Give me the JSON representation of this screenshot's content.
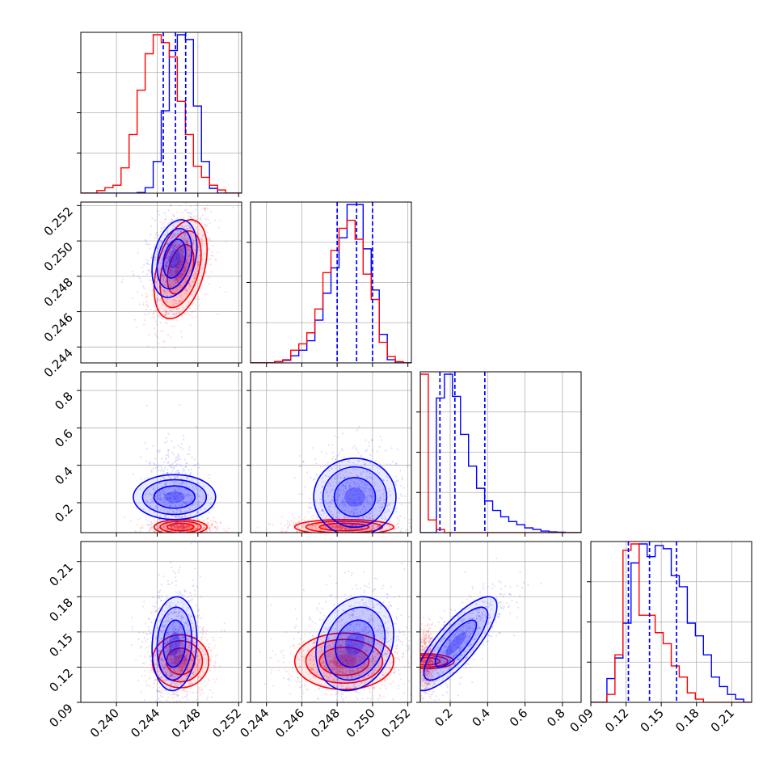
{
  "chart_data": {
    "type": "corner",
    "grid": true,
    "colors": {
      "series_a": "#0000ff",
      "series_b": "#ff0000",
      "frame": "#000000",
      "grid": "#b0b0b0"
    },
    "params": [
      {
        "range": [
          0.2365,
          0.2523
        ],
        "ticks": [
          0.24,
          0.244,
          0.248,
          0.252
        ],
        "tick_labels": [
          "0.240",
          "0.244",
          "0.248",
          "0.252"
        ]
      },
      {
        "range": [
          0.2431,
          0.2522
        ],
        "ticks": [
          0.244,
          0.246,
          0.248,
          0.25,
          0.252
        ],
        "tick_labels": [
          "0.244",
          "0.246",
          "0.248",
          "0.250",
          "0.252"
        ]
      },
      {
        "range": [
          0.04,
          0.9
        ],
        "ticks": [
          0.2,
          0.4,
          0.6,
          0.8
        ],
        "tick_labels": [
          "0.2",
          "0.4",
          "0.6",
          "0.8"
        ]
      },
      {
        "range": [
          0.09,
          0.227
        ],
        "ticks": [
          0.09,
          0.12,
          0.15,
          0.18,
          0.21
        ],
        "tick_labels": [
          "0.09",
          "0.12",
          "0.15",
          "0.18",
          "0.21"
        ]
      }
    ],
    "series": [
      {
        "color": "#0000ff",
        "means": [
          0.2457,
          0.249,
          0.23,
          0.14
        ],
        "stds": [
          0.0011,
          0.0011,
          0.11,
          0.02
        ],
        "quantiles": [
          [
            0.2446,
            0.2458,
            0.2468
          ],
          [
            0.248,
            0.2491,
            0.25
          ],
          [
            0.145,
            0.225,
            0.385
          ],
          [
            0.122,
            0.14,
            0.163
          ]
        ],
        "corr": {
          "1_0": 0.3,
          "2_0": 0.0,
          "2_1": 0.0,
          "3_0": 0.1,
          "3_1": 0.2,
          "3_2": 0.8
        },
        "hist": [
          [
            0,
            0,
            0,
            0,
            0,
            0,
            0,
            0.004,
            0.035,
            0.2,
            0.52,
            0.9,
            1.0,
            0.97,
            0.55,
            0.2,
            0.03,
            0,
            0,
            0
          ],
          [
            0,
            0,
            0,
            0.008,
            0.016,
            0.045,
            0.08,
            0.14,
            0.27,
            0.44,
            0.6,
            0.79,
            1.0,
            1.0,
            0.72,
            0.46,
            0.18,
            0.02,
            0,
            0
          ],
          [
            0,
            0,
            0.85,
            1.0,
            0.86,
            0.62,
            0.42,
            0.28,
            0.2,
            0.14,
            0.1,
            0.07,
            0.05,
            0.03,
            0.02,
            0.01,
            0.005,
            0.003,
            0,
            0
          ],
          [
            0,
            0,
            0.15,
            0.28,
            0.5,
            0.88,
            1.0,
            0.92,
            0.99,
            0.97,
            0.8,
            0.73,
            0.5,
            0.42,
            0.3,
            0.16,
            0.1,
            0.05,
            0.02,
            0
          ]
        ]
      },
      {
        "color": "#ff0000",
        "means": [
          0.2463,
          0.2484,
          0.07,
          0.125
        ],
        "stds": [
          0.0013,
          0.0014,
          0.02,
          0.012
        ],
        "quantiles": [
          [
            0.2446,
            0.2458,
            0.2468
          ],
          [
            0.248,
            0.2491,
            0.25
          ],
          [
            0.145,
            0.225,
            0.385
          ],
          [
            0.122,
            0.14,
            0.163
          ]
        ],
        "corr": {
          "1_0": 0.4,
          "2_0": 0.0,
          "2_1": 0.0,
          "3_0": 0.0,
          "3_1": 0.0,
          "3_2": 0.0
        },
        "hist": [
          [
            0,
            0,
            0.016,
            0.035,
            0.05,
            0.16,
            0.37,
            0.65,
            0.88,
            1.0,
            0.95,
            0.86,
            0.58,
            0.37,
            0.17,
            0.1,
            0.05,
            0.02,
            0,
            0
          ],
          [
            0,
            0,
            0,
            0.008,
            0.02,
            0.08,
            0.12,
            0.19,
            0.34,
            0.57,
            0.71,
            0.85,
            0.9,
            0.78,
            0.56,
            0.4,
            0.13,
            0.04,
            0.008,
            0
          ],
          [
            1.0,
            0.08,
            0.02,
            0,
            0,
            0,
            0,
            0,
            0,
            0,
            0,
            0,
            0,
            0,
            0,
            0,
            0,
            0,
            0,
            0
          ],
          [
            0,
            0,
            0.05,
            0.3,
            0.96,
            1.0,
            0.55,
            0.55,
            0.44,
            0.37,
            0.23,
            0.16,
            0.06,
            0.02,
            0,
            0,
            0,
            0,
            0,
            0
          ]
        ]
      }
    ]
  }
}
